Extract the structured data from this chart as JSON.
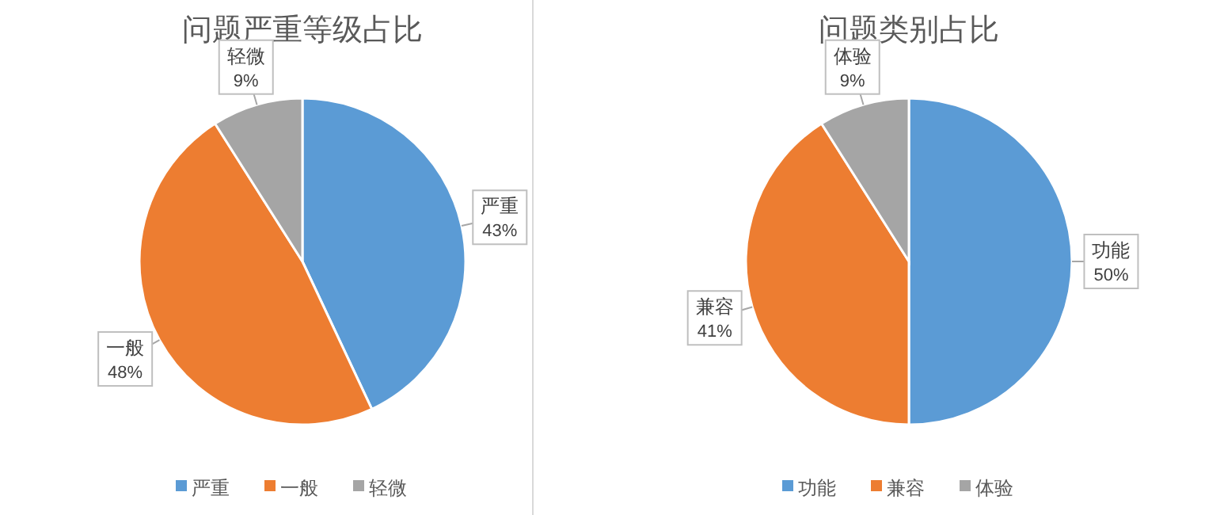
{
  "chart_data": [
    {
      "type": "pie",
      "title": "问题严重等级占比",
      "categories": [
        "严重",
        "一般",
        "轻微"
      ],
      "values": [
        43,
        48,
        9
      ],
      "colors": [
        "#5b9bd5",
        "#ed7d31",
        "#a5a5a5"
      ],
      "value_labels": [
        "43%",
        "48%",
        "9%"
      ],
      "legend": "bottom"
    },
    {
      "type": "pie",
      "title": "问题类别占比",
      "categories": [
        "功能",
        "兼容",
        "体验"
      ],
      "values": [
        50,
        41,
        9
      ],
      "colors": [
        "#5b9bd5",
        "#ed7d31",
        "#a5a5a5"
      ],
      "value_labels": [
        "50%",
        "41%",
        "9%"
      ],
      "legend": "bottom"
    }
  ]
}
